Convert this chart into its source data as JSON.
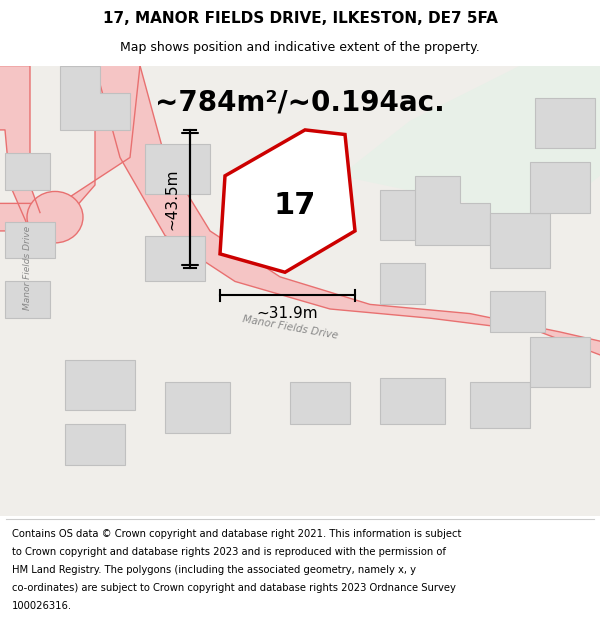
{
  "title": "17, MANOR FIELDS DRIVE, ILKESTON, DE7 5FA",
  "subtitle": "Map shows position and indicative extent of the property.",
  "footer": "Contains OS data © Crown copyright and database right 2021. This information is subject to Crown copyright and database rights 2023 and is reproduced with the permission of HM Land Registry. The polygons (including the associated geometry, namely x, y co-ordinates) are subject to Crown copyright and database rights 2023 Ordnance Survey 100026316.",
  "area_text": "~784m²/~0.194ac.",
  "width_label": "~31.9m",
  "height_label": "~43.5m",
  "plot_number": "17",
  "bg_color": "#f0eeea",
  "map_bg": "#f0eeea",
  "road_color": "#f5c5c5",
  "road_edge_color": "#e87070",
  "building_fill": "#d8d8d8",
  "building_edge": "#c0c0c0",
  "green_area": "#e8f0e8",
  "red_plot_color": "#cc0000",
  "title_fontsize": 11,
  "subtitle_fontsize": 9,
  "footer_fontsize": 7.2,
  "area_fontsize": 20,
  "label_fontsize": 11,
  "plot_number_fontsize": 22,
  "map_extent": [
    0,
    1,
    0,
    1
  ]
}
